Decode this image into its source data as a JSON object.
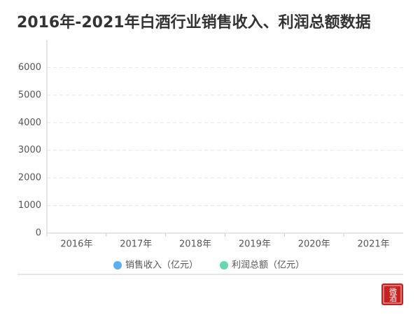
{
  "chart_data": {
    "type": "bar",
    "title": "2016年-2021年白酒行业销售收入、利润总额数据",
    "categories": [
      "2016年",
      "2017年",
      "2018年",
      "2019年",
      "2020年",
      "2021年"
    ],
    "series": [
      {
        "name": "销售收入（亿元）",
        "color": "#5aaef3",
        "values": [
          null,
          null,
          null,
          null,
          null,
          null
        ]
      },
      {
        "name": "利润总额（亿元）",
        "color": "#62daab",
        "values": [
          null,
          null,
          null,
          null,
          null,
          null
        ]
      }
    ],
    "ylim": [
      0,
      7000
    ],
    "yticks": [
      0,
      1000,
      2000,
      3000,
      4000,
      5000,
      6000
    ],
    "grid": true
  },
  "logo": "微酒"
}
